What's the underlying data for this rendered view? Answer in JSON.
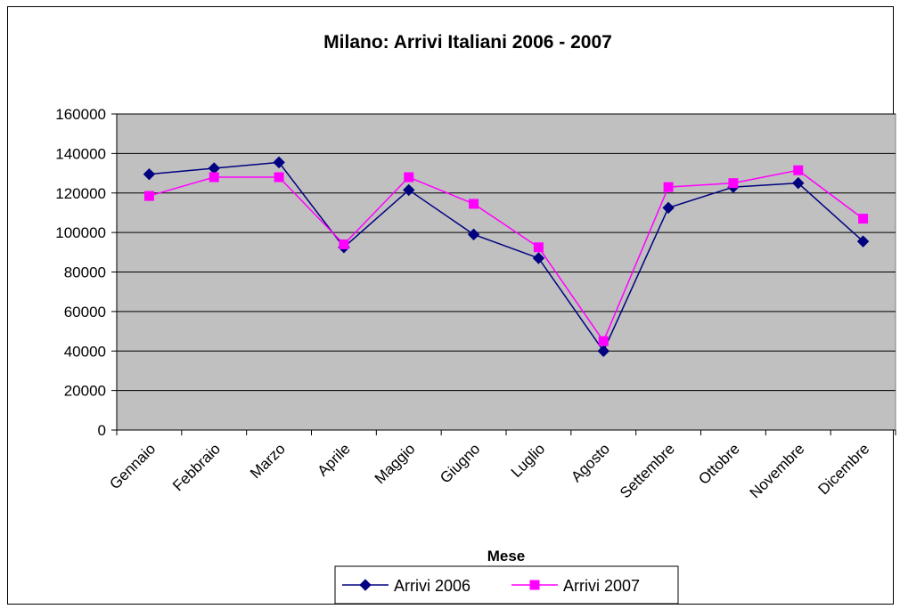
{
  "chart_data": {
    "type": "line",
    "title": "Milano: Arrivi Italiani 2006 - 2007",
    "xlabel": "Mese",
    "ylabel": "",
    "ylim": [
      0,
      160000
    ],
    "yticks": [
      "0",
      "20000",
      "40000",
      "60000",
      "80000",
      "100000",
      "120000",
      "140000",
      "160000"
    ],
    "categories": [
      "Gennaio",
      "Febbraio",
      "Marzo",
      "Aprile",
      "Maggio",
      "Giugno",
      "Luglio",
      "Agosto",
      "Settembre",
      "Ottobre",
      "Novembre",
      "Dicembre"
    ],
    "series": [
      {
        "name": "Arrivi 2006",
        "color": "#000080",
        "marker": "diamond",
        "values": [
          129500,
          132500,
          135500,
          92500,
          121500,
          99000,
          87000,
          40000,
          112500,
          123000,
          125000,
          95500
        ]
      },
      {
        "name": "Arrivi 2007",
        "color": "#ff00ff",
        "marker": "square",
        "values": [
          118500,
          128000,
          128000,
          94000,
          128000,
          114500,
          92500,
          45000,
          123000,
          125000,
          131500,
          107000
        ]
      }
    ],
    "grid": true,
    "plot_background": "#c0c0c0",
    "legend_position": "bottom"
  }
}
